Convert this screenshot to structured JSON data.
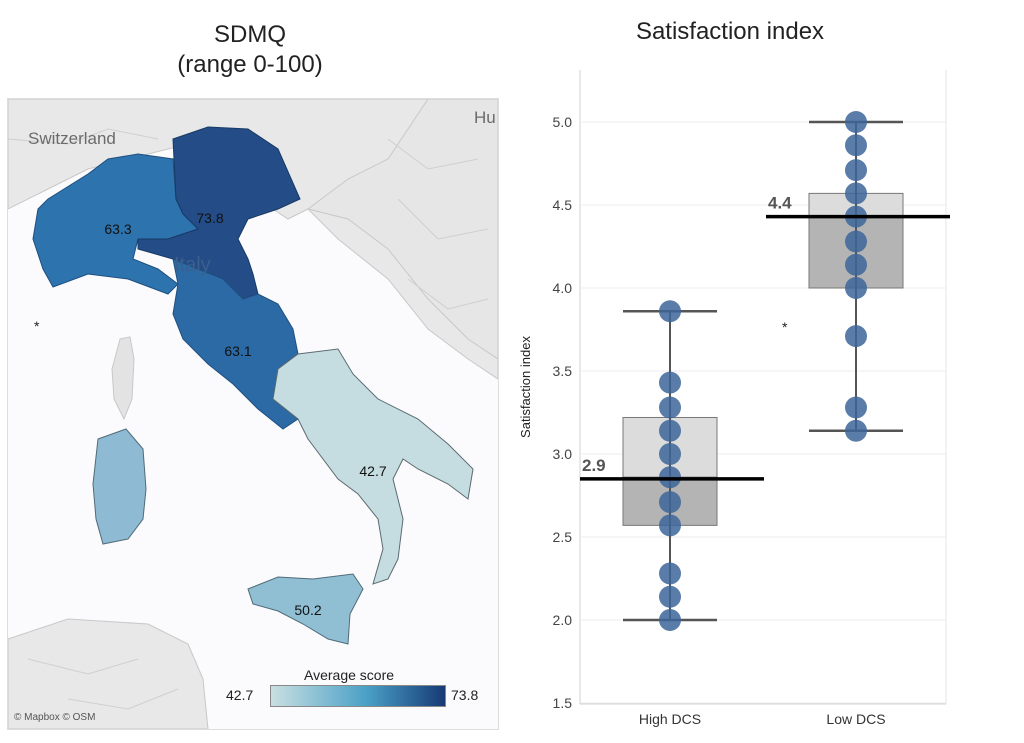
{
  "map": {
    "title_line1": "SDMQ",
    "title_line2": "(range 0-100)",
    "labels": {
      "switzerland": "Switzerland",
      "italy": "Italy",
      "hungary": "Hu"
    },
    "regions": [
      {
        "name": "North-West",
        "value": 63.3,
        "label": "63.3"
      },
      {
        "name": "North-East",
        "value": 73.8,
        "label": "73.8"
      },
      {
        "name": "Centre",
        "value": 63.1,
        "label": "63.1"
      },
      {
        "name": "South",
        "value": 42.7,
        "label": "42.7"
      },
      {
        "name": "Islands",
        "value": 50.2,
        "label": "50.2"
      }
    ],
    "legend": {
      "title": "Average score",
      "min": "42.7",
      "max": "73.8",
      "color_min": "#c9dfe1",
      "color_mid": "#4aa0c7",
      "color_max": "#173a75"
    },
    "attribution": "© Mapbox © OSM",
    "star": "*"
  },
  "chart_data": {
    "type": "scatter",
    "title": "Satisfaction index",
    "ylabel": "Satisfaction index",
    "xlabel": "",
    "categories": [
      "High DCS",
      "Low DCS"
    ],
    "ylim": [
      1.5,
      5.2
    ],
    "yticks": [
      "1.5",
      "2.0",
      "2.5",
      "3.0",
      "3.5",
      "4.0",
      "4.5",
      "5.0"
    ],
    "grid": true,
    "groups": [
      {
        "category": "High DCS",
        "points": [
          2.0,
          2.14,
          2.28,
          2.57,
          2.71,
          2.86,
          3.0,
          3.14,
          3.28,
          3.43,
          3.86
        ],
        "min": 2.0,
        "q1": 2.57,
        "median": 2.86,
        "q3": 3.22,
        "max": 3.86,
        "mean": 2.85,
        "mean_label": "2.9"
      },
      {
        "category": "Low DCS",
        "points": [
          3.14,
          3.28,
          3.71,
          4.0,
          4.14,
          4.28,
          4.43,
          4.57,
          4.71,
          4.86,
          5.0
        ],
        "min": 3.14,
        "q1": 4.0,
        "median": 4.43,
        "q3": 4.57,
        "max": 5.0,
        "mean": 4.43,
        "mean_label": "4.4"
      }
    ],
    "star": "*",
    "colors": {
      "point": "#3d6599",
      "box_upper": "#dcdcdc",
      "box_lower": "#b4b4b4",
      "mean_line": "#000000"
    }
  }
}
